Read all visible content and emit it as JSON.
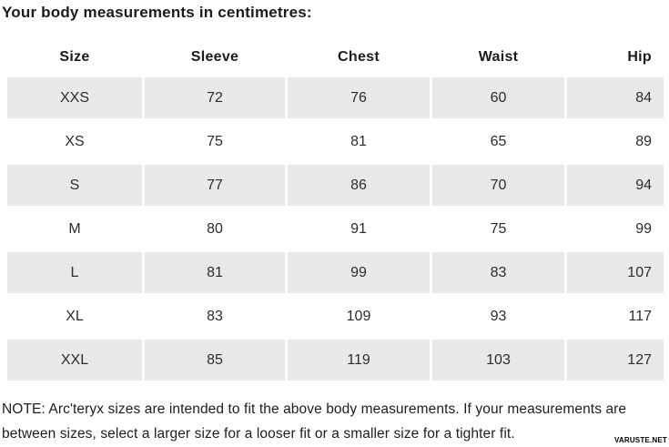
{
  "title": "Your body measurements in centimetres:",
  "table": {
    "columns": [
      "Size",
      "Sleeve",
      "Chest",
      "Waist",
      "Hip"
    ],
    "rows": [
      [
        "XXS",
        "72",
        "76",
        "60",
        "84"
      ],
      [
        "XS",
        "75",
        "81",
        "65",
        "89"
      ],
      [
        "S",
        "77",
        "86",
        "70",
        "94"
      ],
      [
        "M",
        "80",
        "91",
        "75",
        "99"
      ],
      [
        "L",
        "81",
        "99",
        "83",
        "107"
      ],
      [
        "XL",
        "83",
        "109",
        "93",
        "117"
      ],
      [
        "XXL",
        "85",
        "119",
        "103",
        "127"
      ]
    ]
  },
  "note": "NOTE: Arc'teryx sizes are intended to fit the above body measurements. If your measurements are between sizes, select a larger size for a looser fit or a smaller size for a tighter fit.",
  "watermark": "VARUSTE.NET",
  "colors": {
    "stripe": "#e9e9e9",
    "text": "#2d2d2d",
    "heading": "#1c1c1c"
  }
}
